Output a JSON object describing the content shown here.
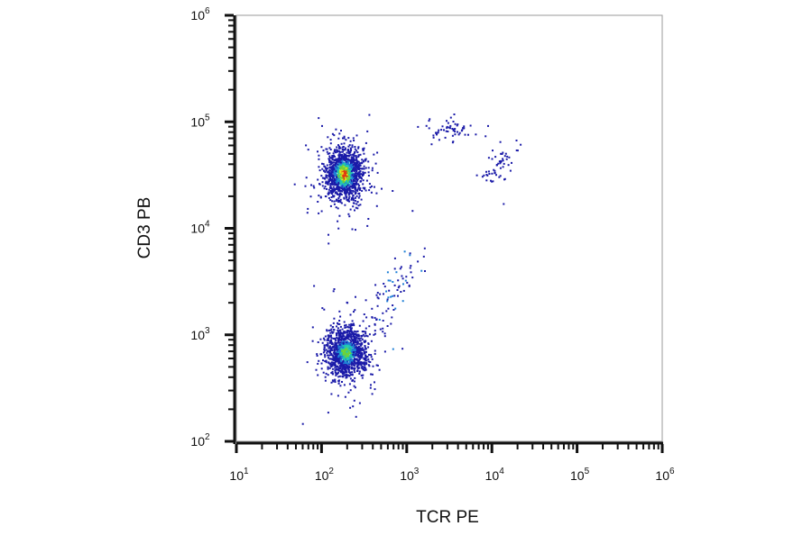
{
  "chart_data": {
    "type": "scatter",
    "title": "",
    "xlabel": "TCR PE",
    "ylabel": "CD3 PB",
    "x_scale": "log",
    "y_scale": "log",
    "xlim": [
      10,
      1000000
    ],
    "ylim": [
      100,
      1000000
    ],
    "x_ticks": [
      {
        "base": "10",
        "exp": "1"
      },
      {
        "base": "10",
        "exp": "2"
      },
      {
        "base": "10",
        "exp": "3"
      },
      {
        "base": "10",
        "exp": "4"
      },
      {
        "base": "10",
        "exp": "5"
      },
      {
        "base": "10",
        "exp": "6"
      }
    ],
    "y_ticks": [
      {
        "base": "10",
        "exp": "2"
      },
      {
        "base": "10",
        "exp": "3"
      },
      {
        "base": "10",
        "exp": "4"
      },
      {
        "base": "10",
        "exp": "5"
      },
      {
        "base": "10",
        "exp": "6"
      }
    ],
    "grid": false,
    "legend": "none",
    "color_scale": "density (blue → cyan → green → yellow → red)",
    "populations": [
      {
        "center_x": 180,
        "center_y": 33000,
        "count": 1400,
        "peak_density": "red"
      },
      {
        "center_x": 190,
        "center_y": 700,
        "count": 1200,
        "peak_density": "green"
      },
      {
        "center_x": 3000,
        "center_y": 85000,
        "count": 60,
        "peak_density": "blue"
      },
      {
        "center_x": 12000,
        "center_y": 40000,
        "count": 55,
        "peak_density": "blue"
      }
    ]
  },
  "colors": {
    "density_low": "#1a1aa8",
    "density_mid_low": "#1e7fd6",
    "density_mid": "#20c9b0",
    "density_mid_high": "#6cd23a",
    "density_high": "#e8e21a",
    "density_peak": "#e03a10",
    "axis": "#111111",
    "frame": "#9a9a9a"
  }
}
